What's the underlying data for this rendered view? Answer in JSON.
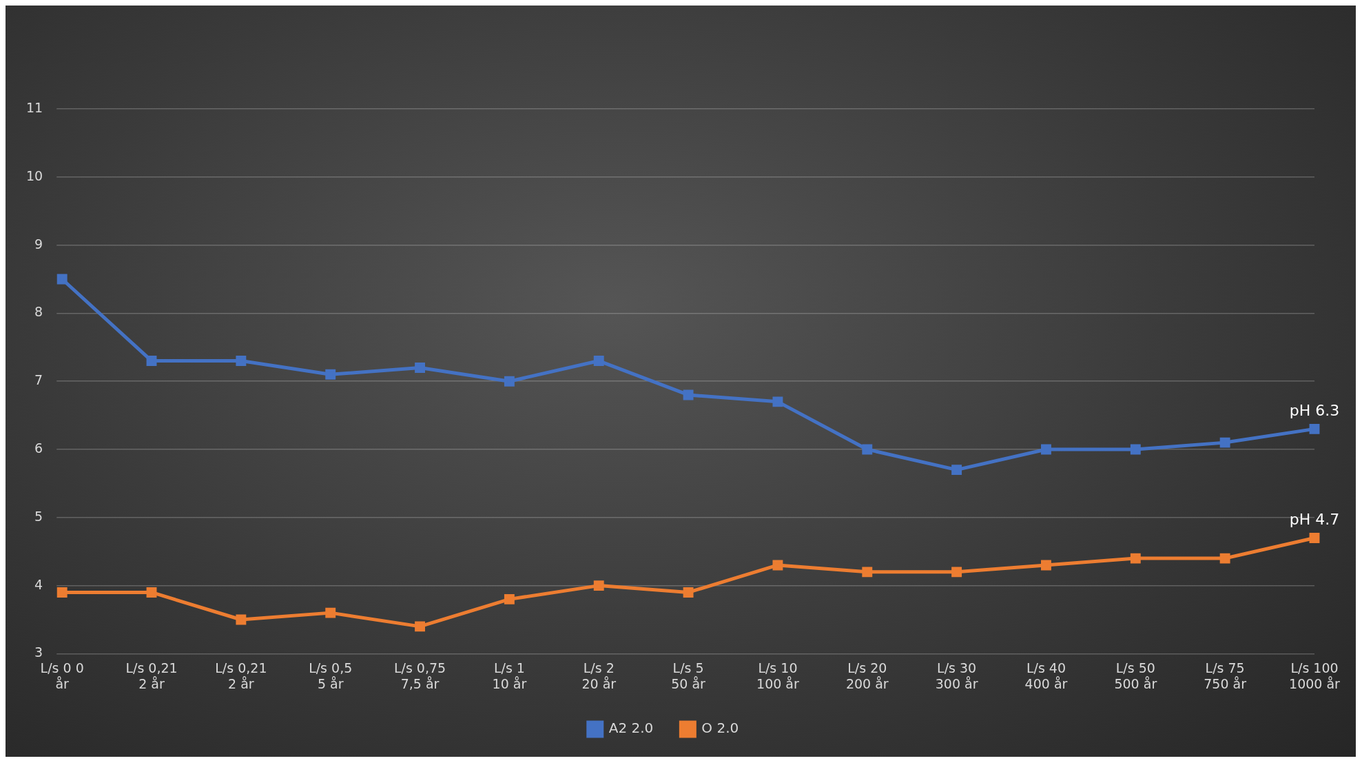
{
  "chart_data": {
    "type": "line",
    "categories": [
      "L/s 0 0\når",
      "L/s 0,21\n2 år",
      "L/s 0,21\n2 år",
      "L/s 0,5\n5 år",
      "L/s 0,75\n7,5 år",
      "L/s 1\n10 år",
      "L/s 2\n20 år",
      "L/s 5\n50 år",
      "L/s 10\n100 år",
      "L/s 20\n200 år",
      "L/s 30\n300 år",
      "L/s 40\n400 år",
      "L/s 50\n500 år",
      "L/s 75\n750 år",
      "L/s 100\n1000 år"
    ],
    "series": [
      {
        "name": "A2 2.0",
        "color": "#4472c4",
        "values": [
          8.5,
          7.3,
          7.3,
          7.1,
          7.2,
          7.0,
          7.3,
          6.8,
          6.7,
          6.0,
          5.7,
          6.0,
          6.0,
          6.1,
          6.3
        ]
      },
      {
        "name": "O 2.0",
        "color": "#ed7d31",
        "values": [
          3.9,
          3.9,
          3.5,
          3.6,
          3.4,
          3.8,
          4.0,
          3.9,
          4.3,
          4.2,
          4.2,
          4.3,
          4.4,
          4.4,
          4.7
        ]
      }
    ],
    "annotations": [
      {
        "text": "pH 6.3",
        "x": "L/s 100\n1000 år",
        "y": 6.3
      },
      {
        "text": "pH 4.7",
        "x": "L/s 100\n1000 år",
        "y": 4.7
      }
    ],
    "ylim": [
      3,
      11
    ],
    "yticks": [
      3,
      4,
      5,
      6,
      7,
      8,
      9,
      10,
      11
    ],
    "grid": "y",
    "legend": "bottom",
    "marker": "square",
    "line_style": "solid"
  }
}
